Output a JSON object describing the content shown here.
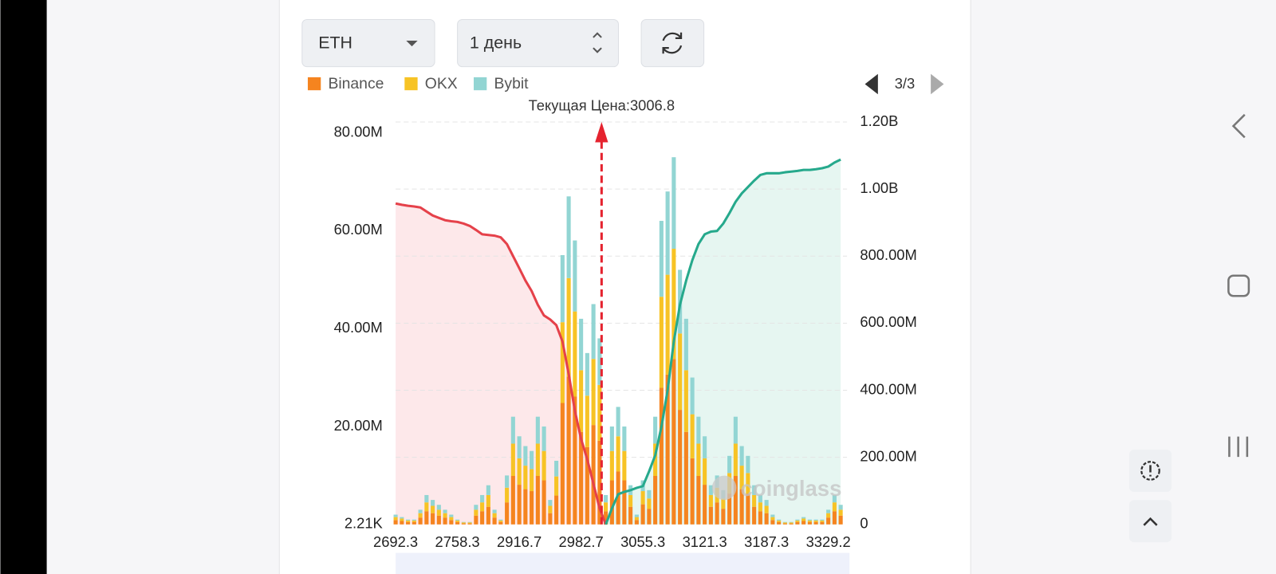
{
  "ui": {
    "coin_select": "ETH",
    "period_select": "1 день",
    "pager": "3/3",
    "watermark": "coinglass"
  },
  "chart_data": {
    "type": "bar",
    "stacked": true,
    "current_price_label": "Текущая Цена:",
    "current_price": 3006.8,
    "current_price_color": "#e5232f",
    "categories": [
      "2692.3",
      null,
      null,
      null,
      null,
      null,
      null,
      null,
      null,
      null,
      "2758.3",
      null,
      null,
      null,
      null,
      null,
      null,
      null,
      null,
      null,
      "2916.7",
      null,
      null,
      null,
      null,
      null,
      null,
      null,
      null,
      null,
      "2982.7",
      null,
      null,
      null,
      null,
      null,
      null,
      null,
      null,
      null,
      "3055.3",
      null,
      null,
      null,
      null,
      null,
      null,
      null,
      null,
      null,
      "3121.3",
      null,
      null,
      null,
      null,
      null,
      null,
      null,
      null,
      null,
      "3187.3",
      null,
      null,
      null,
      null,
      null,
      null,
      null,
      null,
      null,
      "3329.2",
      null,
      null
    ],
    "ylim": [
      2210,
      82200000
    ],
    "yticks": [
      {
        "value": 2210,
        "label": "2.21K"
      },
      {
        "value": 20000000,
        "label": "20.00M"
      },
      {
        "value": 40000000,
        "label": "40.00M"
      },
      {
        "value": 60000000,
        "label": "60.00M"
      },
      {
        "value": 80000000,
        "label": "80.00M"
      }
    ],
    "y2lim": [
      0,
      1200000000
    ],
    "y2ticks": [
      0,
      {
        "value": 200000000,
        "label": "200.00M"
      },
      {
        "value": 400000000,
        "label": "400.00M"
      },
      {
        "value": 600000000,
        "label": "600.00M"
      },
      {
        "value": 800000000,
        "label": "800.00M"
      },
      {
        "value": 1000000000,
        "label": "1.00B"
      },
      {
        "value": 1200000000,
        "label": "1.20B"
      }
    ],
    "grid": true,
    "series": [
      {
        "name": "Binance",
        "color": "#f5841f",
        "values": [
          900000.0,
          700000.0,
          500000.0,
          500000.0,
          1400000.0,
          2700000.0,
          2300000.0,
          1800000.0,
          1400000.0,
          900000.0,
          500000.0,
          200000.0,
          200000.0,
          1800000.0,
          2700000.0,
          3600000.0,
          1400000.0,
          500000.0,
          4500000.0,
          9900000.0,
          8100000.0,
          7200000.0,
          6800000.0,
          9900000.0,
          9000000.0,
          2300000.0,
          5900000.0,
          24800000.0,
          30200000.0,
          26100000.0,
          18900000.0,
          15800000.0,
          20300000.0,
          17100000.0,
          2700000.0,
          9000000.0,
          10800000.0,
          9000000.0,
          3600000.0,
          900000.0,
          4100000.0,
          3200000.0,
          9900000.0,
          27900000.0,
          30600000.0,
          33800000.0,
          23400000.0,
          18900000.0,
          13500000.0,
          9900000.0,
          8100000.0,
          3600000.0,
          4500000.0,
          3200000.0,
          6300000.0,
          9900000.0,
          7200000.0,
          6300000.0,
          3600000.0,
          2700000.0,
          2300000.0,
          900000.0,
          500000.0,
          200000.0,
          200000.0,
          500000.0,
          700000.0,
          500000.0,
          500000.0,
          500000.0,
          1400000.0,
          2700000.0,
          1800000.0
        ]
      },
      {
        "name": "OKX",
        "color": "#f7c325",
        "values": [
          600000.0,
          500000.0,
          300000.0,
          300000.0,
          900000.0,
          1800000.0,
          1500000.0,
          1200000.0,
          900000.0,
          600000.0,
          300000.0,
          200000.0,
          200000.0,
          1200000.0,
          1800000.0,
          2400000.0,
          900000.0,
          300000.0,
          3000000.0,
          6600000.0,
          5400000.0,
          4800000.0,
          4500000.0,
          6600000.0,
          6000000.0,
          1500000.0,
          3900000.0,
          16500000.0,
          20100000.0,
          17400000.0,
          12600000.0,
          10500000.0,
          13500000.0,
          11400000.0,
          1800000.0,
          6000000.0,
          7200000.0,
          6000000.0,
          2400000.0,
          600000.0,
          2700000.0,
          2100000.0,
          6600000.0,
          18600000.0,
          20400000.0,
          22500000.0,
          15600000.0,
          12600000.0,
          9000000.0,
          6600000.0,
          5400000.0,
          2400000.0,
          3000000.0,
          2100000.0,
          4200000.0,
          6600000.0,
          4800000.0,
          4200000.0,
          2400000.0,
          1800000.0,
          1500000.0,
          600000.0,
          300000.0,
          200000.0,
          200000.0,
          300000.0,
          500000.0,
          300000.0,
          300000.0,
          300000.0,
          900000.0,
          1800000.0,
          1200000.0
        ]
      },
      {
        "name": "Bybit",
        "color": "#92d5d3",
        "values": [
          500000.0,
          300000.0,
          200000.0,
          200000.0,
          700000.0,
          1500000.0,
          1200000.0,
          1000000.0,
          700000.0,
          500000.0,
          200000.0,
          100000.0,
          100000.0,
          1000000.0,
          1500000.0,
          2000000.0,
          700000.0,
          200000.0,
          2500000.0,
          5500000.0,
          4500000.0,
          4000000.0,
          3700000.0,
          5500000.0,
          5000000.0,
          1200000.0,
          3200000.0,
          13700000.0,
          16700000.0,
          14500000.0,
          10500000.0,
          8700000.0,
          11200000.0,
          9500000.0,
          1500000.0,
          5000000.0,
          6000000.0,
          5000000.0,
          2000000.0,
          500000.0,
          2200000.0,
          1700000.0,
          5500000.0,
          15500000.0,
          17000000.0,
          18700000.0,
          13000000.0,
          10500000.0,
          7500000.0,
          5500000.0,
          4500000.0,
          2000000.0,
          2500000.0,
          1700000.0,
          3500000.0,
          5500000.0,
          4000000.0,
          3500000.0,
          2000000.0,
          1500000.0,
          1200000.0,
          500000.0,
          200000.0,
          100000.0,
          100000.0,
          200000.0,
          300000.0,
          200000.0,
          200000.0,
          200000.0,
          700000.0,
          1500000.0,
          1000000.0
        ]
      },
      {
        "type": "area",
        "axis": "y2",
        "color": "#e5414a",
        "fill": "#fde8ea",
        "values": [
          957000000.0,
          953000000.0,
          950000000.0,
          948000000.0,
          945000000.0,
          933000000.0,
          921000000.0,
          914000000.0,
          907000000.0,
          904000000.0,
          902000000.0,
          897000000.0,
          890000000.0,
          878000000.0,
          865000000.0,
          863000000.0,
          861000000.0,
          856000000.0,
          836000000.0,
          800000000.0,
          764000000.0,
          727000000.0,
          696000000.0,
          655000000.0,
          623000000.0,
          611000000.0,
          594000000.0,
          545000000.0,
          448000000.0,
          339000000.0,
          255000000.0,
          194000000.0,
          121000000.0,
          48000000.0,
          0,
          null,
          null,
          null,
          null,
          null,
          null,
          null,
          null,
          null,
          null,
          null,
          null,
          null,
          null,
          null,
          null,
          null,
          null,
          null,
          null,
          null,
          null,
          null,
          null,
          null,
          null,
          null,
          null,
          null,
          null,
          null,
          null,
          null,
          null,
          null,
          null,
          null,
          null
        ]
      },
      {
        "type": "area",
        "axis": "y2",
        "color": "#26a98c",
        "fill": "#e6f6f1",
        "values": [
          null,
          null,
          null,
          null,
          null,
          null,
          null,
          null,
          null,
          null,
          null,
          null,
          null,
          null,
          null,
          null,
          null,
          null,
          null,
          null,
          null,
          null,
          null,
          null,
          null,
          null,
          null,
          null,
          null,
          null,
          null,
          null,
          null,
          null,
          0,
          48000000.0,
          90000000.0,
          97000000.0,
          102000000.0,
          109000000.0,
          114000000.0,
          158000000.0,
          206000000.0,
          291000000.0,
          400000000.0,
          545000000.0,
          655000000.0,
          727000000.0,
          788000000.0,
          836000000.0,
          865000000.0,
          873000000.0,
          875000000.0,
          897000000.0,
          928000000.0,
          962000000.0,
          987000000.0,
          1006000000.0,
          1025000000.0,
          1042000000.0,
          1047000000.0,
          1047000000.0,
          1047000000.0,
          1050000000.0,
          1052000000.0,
          1054000000.0,
          1057000000.0,
          1057000000.0,
          1059000000.0,
          1062000000.0,
          1067000000.0,
          1079000000.0,
          1088000000.0
        ]
      }
    ]
  }
}
